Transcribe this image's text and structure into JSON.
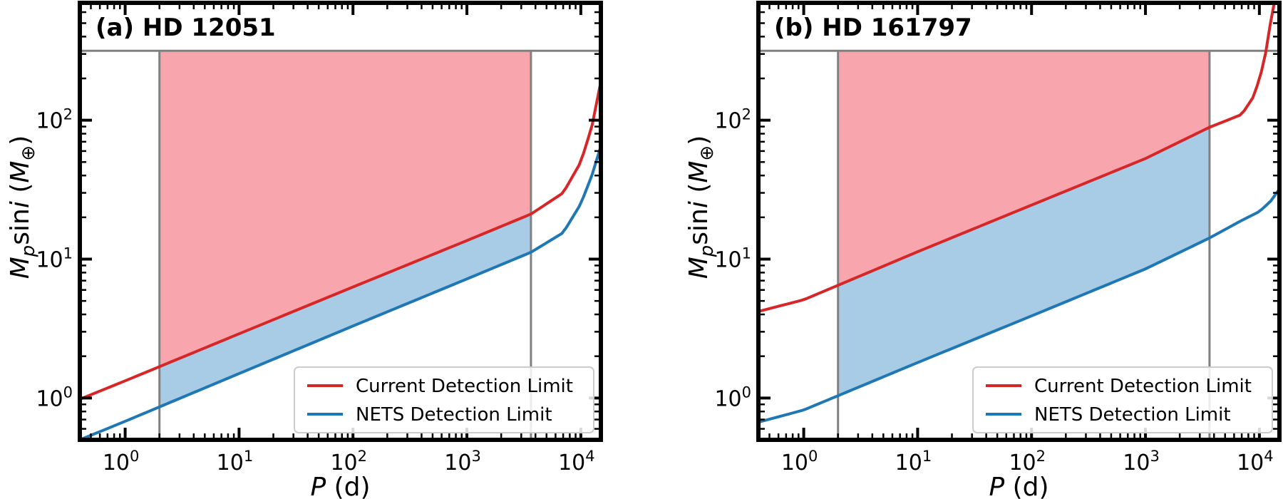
{
  "chart_data": [
    {
      "type": "line",
      "title": "(a) HD 12051",
      "xlabel": "P (d)",
      "ylabel": "Mpsini (M⊕)",
      "xscale": "log",
      "yscale": "log",
      "xlim": [
        0.4,
        15000
      ],
      "ylim": [
        0.5,
        700
      ],
      "grid": false,
      "legend_position": "lower-right",
      "x_tick_labels": [
        "10^0",
        "10^1",
        "10^2",
        "10^3",
        "10^4"
      ],
      "y_tick_labels": [
        "10^0",
        "10^1",
        "10^2"
      ],
      "shaded_region": {
        "x_min": 2,
        "x_max": 3650,
        "y_max": 316
      },
      "series": [
        {
          "name": "Current Detection Limit",
          "color": "#d62728",
          "fill_above_color": "#f8a5ad",
          "x": [
            0.4,
            1,
            10,
            100,
            1000,
            3650,
            7000,
            10000,
            12500,
            15000
          ],
          "y": [
            0.98,
            1.33,
            2.9,
            6.3,
            13.6,
            21.1,
            30,
            50,
            90,
            190
          ]
        },
        {
          "name": "NETS Detection Limit",
          "color": "#1f77b4",
          "fill_between_color": "#a8cbe6",
          "x": [
            0.4,
            1,
            10,
            100,
            1000,
            3650,
            7000,
            10000,
            12500,
            15000
          ],
          "y": [
            0.5,
            0.68,
            1.5,
            3.3,
            7.2,
            11.2,
            15.5,
            25,
            40,
            65
          ]
        }
      ]
    },
    {
      "type": "line",
      "title": "(b) HD 161797",
      "xlabel": "P (d)",
      "ylabel": "Mpsini (M⊕)",
      "xscale": "log",
      "yscale": "log",
      "xlim": [
        0.4,
        15000
      ],
      "ylim": [
        0.5,
        700
      ],
      "grid": false,
      "legend_position": "lower-right",
      "x_tick_labels": [
        "10^0",
        "10^1",
        "10^2",
        "10^3",
        "10^4"
      ],
      "y_tick_labels": [
        "10^0",
        "10^1",
        "10^2"
      ],
      "shaded_region": {
        "x_min": 2,
        "x_max": 3650,
        "y_max": 316
      },
      "series": [
        {
          "name": "Current Detection Limit",
          "color": "#d62728",
          "fill_above_color": "#f8a5ad",
          "x": [
            0.4,
            1,
            10,
            100,
            1000,
            3650,
            7000,
            9000,
            11000,
            12500,
            13500
          ],
          "y": [
            4.2,
            5.1,
            11.3,
            24.5,
            53,
            89,
            110,
            150,
            260,
            500,
            700
          ]
        },
        {
          "name": "NETS Detection Limit",
          "color": "#1f77b4",
          "fill_between_color": "#a8cbe6",
          "x": [
            0.4,
            1,
            10,
            100,
            1000,
            3650,
            7000,
            10000,
            12500,
            15000
          ],
          "y": [
            0.67,
            0.82,
            1.8,
            3.9,
            8.5,
            14.2,
            19,
            22,
            26,
            32
          ]
        }
      ]
    }
  ]
}
